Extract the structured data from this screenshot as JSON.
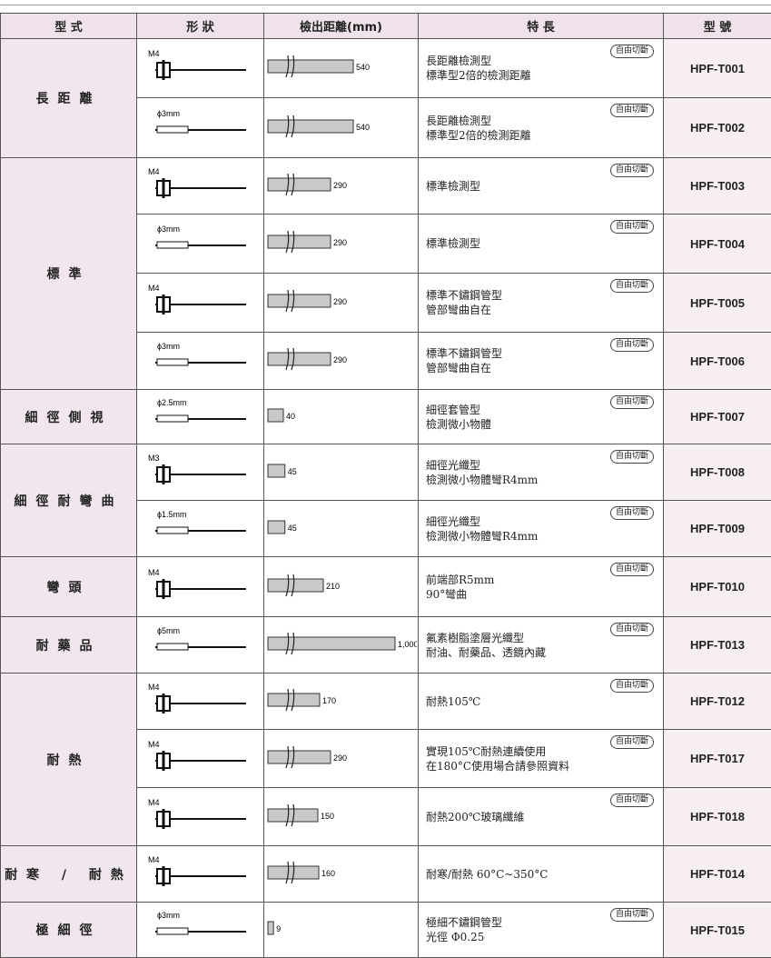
{
  "table": {
    "headers": [
      "型 式",
      "形 狀",
      "檢出距離(mm)",
      "特 長",
      "型 號"
    ],
    "groups": [
      {
        "label": "長距離",
        "rows": [
          {
            "shape": "M4",
            "distance": 540,
            "features": [
              "長距離檢測型",
              "標準型2倍的檢測距離"
            ],
            "badge": "自由切斷",
            "model": "HPF-T001"
          },
          {
            "shape": "ϕ3mm",
            "distance": 540,
            "features": [
              "長距離檢測型",
              "標準型2倍的檢測距離"
            ],
            "badge": "自由切斷",
            "model": "HPF-T002"
          }
        ]
      },
      {
        "label": "標準",
        "rows": [
          {
            "shape": "M4",
            "distance": 290,
            "features": [
              "標準檢測型"
            ],
            "badge": "自由切斷",
            "model": "HPF-T003"
          },
          {
            "shape": "ϕ3mm",
            "distance": 290,
            "features": [
              "標準檢測型"
            ],
            "badge": "自由切斷",
            "model": "HPF-T004"
          },
          {
            "shape": "M4",
            "distance": 290,
            "features": [
              "標準不鏽鋼管型",
              "管部彎曲自在"
            ],
            "badge": "自由切斷",
            "model": "HPF-T005"
          },
          {
            "shape": "ϕ3mm",
            "distance": 290,
            "features": [
              "標準不鏽鋼管型",
              "管部彎曲自在"
            ],
            "badge": "自由切斷",
            "model": "HPF-T006"
          }
        ]
      },
      {
        "label": "細徑側視",
        "rows": [
          {
            "shape": "ϕ2.5mm",
            "distance": 40,
            "features": [
              "細徑套管型",
              "檢測微小物體"
            ],
            "badge": "自由切斷",
            "model": "HPF-T007"
          }
        ]
      },
      {
        "label": "細徑耐彎曲",
        "rows": [
          {
            "shape": "M3",
            "distance": 45,
            "features": [
              "細徑光纖型",
              "檢測微小物體彎R4mm"
            ],
            "badge": "自由切斷",
            "model": "HPF-T008"
          },
          {
            "shape": "ϕ1.5mm",
            "distance": 45,
            "features": [
              "細徑光纖型",
              "檢測微小物體彎R4mm"
            ],
            "badge": "自由切斷",
            "model": "HPF-T009"
          }
        ]
      },
      {
        "label": "彎頭",
        "rows": [
          {
            "shape": "M4",
            "distance": 210,
            "features": [
              "前端部R5mm",
              "90°彎曲"
            ],
            "badge": "自由切斷",
            "model": "HPF-T010"
          }
        ]
      },
      {
        "label": "耐藥品",
        "rows": [
          {
            "shape": "ϕ5mm",
            "distance": 1000,
            "distance_label": "1,000",
            "features": [
              "氟素樹脂塗層光纖型",
              "耐油、耐藥品、透鏡內藏"
            ],
            "badge": "自由切斷",
            "model": "HPF-T013"
          }
        ]
      },
      {
        "label": "耐熱",
        "rows": [
          {
            "shape": "M4",
            "distance": 170,
            "features": [
              "耐熱105℃"
            ],
            "badge": "自由切斷",
            "model": "HPF-T012"
          },
          {
            "shape": "M4",
            "distance": 290,
            "features": [
              "實現105℃耐熱連續使用",
              "在180°C使用場合請參照資料"
            ],
            "badge": "自由切斷",
            "model": "HPF-T017"
          },
          {
            "shape": "M4",
            "distance": 150,
            "features": [
              "耐熱200℃玻璃纖維"
            ],
            "badge": "自由切斷",
            "model": "HPF-T018"
          }
        ]
      },
      {
        "label": "耐寒 / 耐熱",
        "rows": [
          {
            "shape": "M4",
            "distance": 160,
            "features": [
              "耐寒/耐熱 60°C~350°C"
            ],
            "model": "HPF-T014"
          }
        ]
      },
      {
        "label": "極細徑",
        "rows": [
          {
            "shape": "ϕ3mm",
            "distance": 9,
            "features": [
              "極細不鏽鋼管型",
              "光徑 Φ0.25"
            ],
            "badge": "自由切斷",
            "model": "HPF-T015"
          }
        ]
      }
    ]
  }
}
